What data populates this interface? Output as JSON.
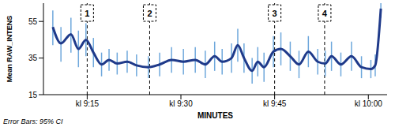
{
  "chart_data": {
    "type": "line",
    "color": "#1f3a8a",
    "grid": false,
    "x_label": "MINUTES",
    "y_label": "Mean RAW_INTENS",
    "footnote": "Error Bars: 95% CI",
    "xlim": [
      8,
      63
    ],
    "xticks": [
      {
        "value": 15,
        "label": "kl 9:15"
      },
      {
        "value": 30,
        "label": "kl 9:30"
      },
      {
        "value": 45,
        "label": "kl 9:45"
      },
      {
        "value": 60,
        "label": "kl 10:00"
      }
    ],
    "ylim": [
      15,
      65
    ],
    "yticks": [
      15,
      35,
      55
    ],
    "x": [
      9.5,
      10.8,
      12.4,
      13.6,
      14.8,
      16,
      17.3,
      18.5,
      19.8,
      21.4,
      22.9,
      24.8,
      26.6,
      28.5,
      30.4,
      32.3,
      33.9,
      35.4,
      36.6,
      38.1,
      39.1,
      40.1,
      41.4,
      42.3,
      43.3,
      44.8,
      46,
      47.5,
      48.9,
      50.4,
      51.9,
      53.1,
      54.1,
      55.6,
      57.3,
      58.9,
      60.4,
      61.1,
      62
    ],
    "values": [
      52,
      43,
      48,
      40,
      45,
      38,
      31.5,
      34,
      32,
      33,
      31,
      30,
      31.5,
      34,
      33,
      34,
      31.5,
      36,
      33,
      35,
      42,
      35,
      28,
      33,
      30,
      38.5,
      40,
      36,
      31.5,
      38.5,
      33,
      32,
      36,
      31.5,
      36,
      30,
      29,
      31,
      62
    ],
    "ci_low": [
      42,
      33,
      38,
      30,
      36,
      30,
      25,
      28,
      26,
      27,
      25,
      24,
      25,
      27,
      26,
      27,
      24,
      28,
      26,
      27,
      33,
      27,
      21,
      25,
      22,
      30,
      31,
      28,
      24,
      30,
      26,
      25,
      28,
      25,
      28,
      24,
      24,
      25,
      57
    ],
    "ci_high": [
      61,
      52,
      57,
      50,
      54,
      46,
      38,
      40,
      38,
      39,
      37,
      36,
      38,
      41,
      40,
      41,
      39,
      44,
      40,
      43,
      51,
      43,
      35,
      41,
      38,
      47,
      49,
      44,
      39,
      47,
      40,
      39,
      44,
      38,
      44,
      36,
      34,
      37,
      65
    ],
    "annotations": [
      {
        "x": 15,
        "label": "1"
      },
      {
        "x": 25,
        "label": "2"
      },
      {
        "x": 45,
        "label": "3"
      },
      {
        "x": 53,
        "label": "4"
      }
    ]
  }
}
